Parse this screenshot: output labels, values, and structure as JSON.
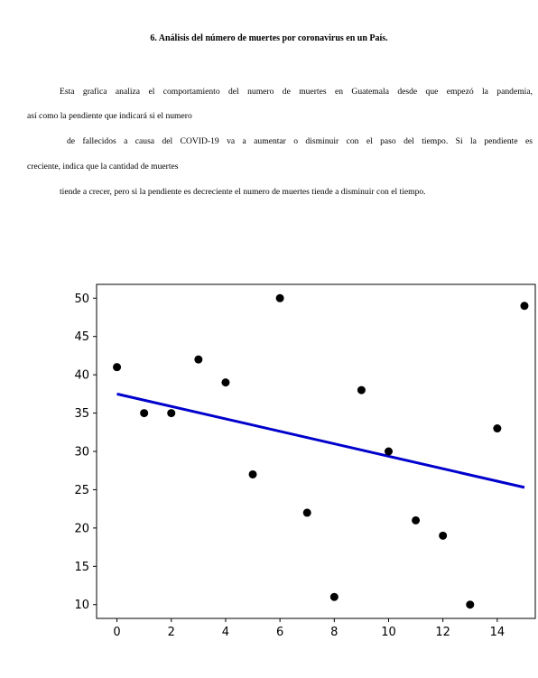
{
  "document": {
    "heading": "6. Análisis del número de muertes por coronavirus en un País.",
    "lines": [
      "Esta grafica analiza el comportamiento del numero de muertes en Guatemala desde que empezó la pandemia,",
      "así como la pendiente que indicará si el numero",
      "de fallecidos a causa del COVID-19 va a aumentar o disminuir con el paso del tiempo. Si la pendiente es",
      "creciente, indica que la cantidad de muertes",
      "tiende a crecer, pero si la pendiente es decreciente el numero de muertes tiende a disminuir con el tiempo."
    ]
  },
  "chart_data": {
    "type": "scatter",
    "title": "",
    "xlabel": "",
    "ylabel": "",
    "xlim": [
      -0.75,
      15.4
    ],
    "ylim": [
      8.2,
      51.8
    ],
    "xticks": [
      0,
      2,
      4,
      6,
      8,
      10,
      12,
      14
    ],
    "yticks": [
      10,
      15,
      20,
      25,
      30,
      35,
      40,
      45,
      50
    ],
    "grid": false,
    "legend": "none",
    "points": {
      "x": [
        0,
        1,
        2,
        3,
        4,
        5,
        6,
        7,
        8,
        9,
        10,
        11,
        12,
        13,
        14,
        15
      ],
      "y": [
        41,
        35,
        35,
        42,
        39,
        27,
        50,
        22,
        11,
        38,
        30,
        21,
        19,
        10,
        33,
        49
      ],
      "color": "#000000"
    },
    "trend_line": {
      "x": [
        0,
        15
      ],
      "y": [
        37.5,
        25.3
      ],
      "color": "#0000cc"
    }
  }
}
